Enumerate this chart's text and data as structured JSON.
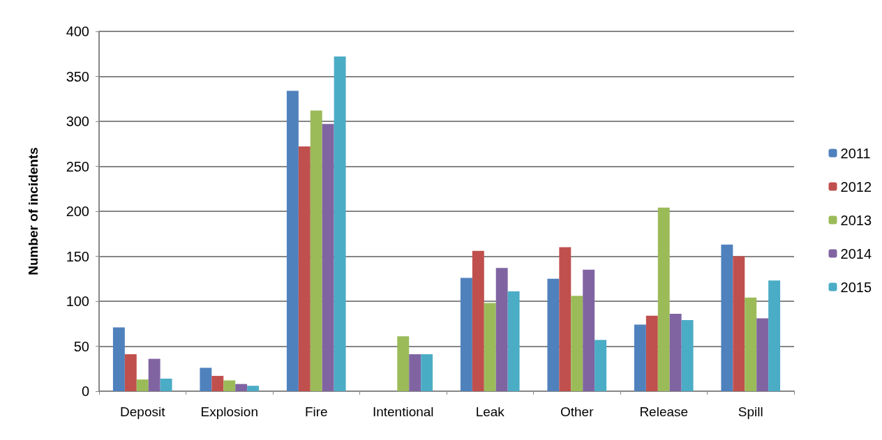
{
  "chart_data": {
    "type": "bar",
    "ylabel": "Number of incidents",
    "categories": [
      "Deposit",
      "Explosion",
      "Fire",
      "Intentional",
      "Leak",
      "Other",
      "Release",
      "Spill"
    ],
    "series": [
      {
        "name": "2011",
        "color": "#4f81bd",
        "values": [
          71,
          26,
          334,
          0,
          126,
          125,
          74,
          163
        ]
      },
      {
        "name": "2012",
        "color": "#c0504d",
        "values": [
          41,
          17,
          272,
          0,
          156,
          160,
          84,
          150
        ]
      },
      {
        "name": "2013",
        "color": "#9bbb59",
        "values": [
          13,
          12,
          312,
          61,
          98,
          106,
          204,
          104
        ]
      },
      {
        "name": "2014",
        "color": "#8064a2",
        "values": [
          36,
          8,
          297,
          41,
          137,
          135,
          86,
          81
        ]
      },
      {
        "name": "2015",
        "color": "#4bacc6",
        "values": [
          14,
          6,
          372,
          41,
          111,
          57,
          79,
          123
        ]
      }
    ],
    "ylim": [
      0,
      400
    ],
    "yticks": [
      0,
      50,
      100,
      150,
      200,
      250,
      300,
      350,
      400
    ],
    "grid": "y",
    "legend": "right"
  }
}
